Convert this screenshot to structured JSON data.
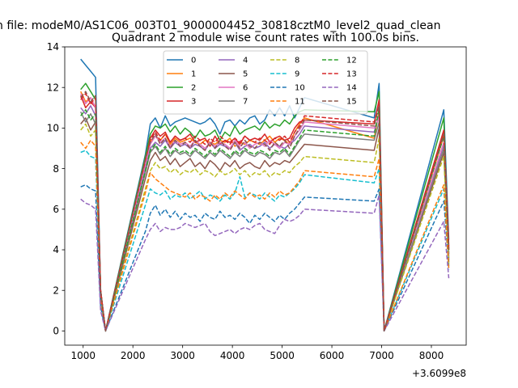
{
  "figure": {
    "suptitle": "n file: modeM0/AS1C06_003T01_9000004452_30818cztM0_level2_quad_clean",
    "title": "Quadrant 2 module wise count rates with 100.0s bins.",
    "x_offset_label": "+3.6099e8"
  },
  "chart_data": {
    "type": "line",
    "title": "Quadrant 2 module wise count rates with 100.0s bins.",
    "xlabel": "",
    "ylabel": "",
    "x_offset": 360990000,
    "xlim": [
      630,
      8700
    ],
    "ylim": [
      -0.7,
      14.0
    ],
    "xticks": [
      1000,
      2000,
      3000,
      4000,
      5000,
      6000,
      7000,
      8000
    ],
    "xtick_labels": [
      "1000",
      "2000",
      "3000",
      "4000",
      "5000",
      "6000",
      "7000",
      "8000"
    ],
    "yticks": [
      0,
      2,
      4,
      6,
      8,
      10,
      12,
      14
    ],
    "ytick_labels": [
      "0",
      "2",
      "4",
      "6",
      "8",
      "10",
      "12",
      "14"
    ],
    "grid": false,
    "legend": {
      "placement": "top-center",
      "columns": 4
    },
    "segments": [
      {
        "start": 950,
        "count": 6
      },
      {
        "start": 2250,
        "count": 33
      },
      {
        "start": 6850,
        "count": 3
      },
      {
        "start": 8250,
        "count": 2
      }
    ],
    "series": [
      {
        "name": "0",
        "color": "#1f77b4",
        "dash": "solid",
        "values": [
          13.4,
          13.1,
          12.8,
          12.5,
          2.0,
          0,
          8.7,
          10.2,
          10.5,
          10.0,
          10.6,
          10.1,
          10.3,
          10.4,
          10.5,
          10.4,
          10.3,
          10.2,
          10.3,
          10.5,
          10.2,
          9.7,
          10.3,
          10.4,
          10.1,
          10.4,
          10.2,
          10.5,
          10.6,
          10.2,
          10.4,
          10.9,
          10.6,
          11.0,
          10.6,
          11.1,
          10.5,
          11.0,
          11.5,
          10.5,
          12.2,
          0,
          10.9,
          4.5
        ]
      },
      {
        "name": "1",
        "color": "#ff7f0e",
        "dash": "solid",
        "values": [
          11.8,
          11.3,
          11.5,
          11.0,
          2.0,
          0,
          8.0,
          9.3,
          9.6,
          9.4,
          9.7,
          9.2,
          9.5,
          9.3,
          9.4,
          9.5,
          9.3,
          9.2,
          9.4,
          9.3,
          9.2,
          9.4,
          9.3,
          9.5,
          9.1,
          9.3,
          9.2,
          9.4,
          9.3,
          9.2,
          9.4,
          9.6,
          9.3,
          9.5,
          9.4,
          9.2,
          9.8,
          10.2,
          10.5,
          9.5,
          10.8,
          0,
          9.6,
          4.0
        ]
      },
      {
        "name": "2",
        "color": "#2ca02c",
        "dash": "solid",
        "values": [
          11.9,
          12.2,
          11.8,
          11.4,
          2.0,
          0,
          8.6,
          9.7,
          10.1,
          10.0,
          10.2,
          9.8,
          10.1,
          9.7,
          10.0,
          9.8,
          9.5,
          9.9,
          9.6,
          9.7,
          9.9,
          9.4,
          9.8,
          9.6,
          10.1,
          9.7,
          9.9,
          10.0,
          10.1,
          9.9,
          10.3,
          10.0,
          10.2,
          10.1,
          10.4,
          10.2,
          10.6,
          10.8,
          10.9,
          10.8,
          11.8,
          0,
          10.5,
          3.8
        ]
      },
      {
        "name": "3",
        "color": "#d62728",
        "dash": "solid",
        "values": [
          11.6,
          11.0,
          11.3,
          11.0,
          2.0,
          0,
          8.3,
          9.5,
          9.9,
          9.6,
          9.8,
          9.3,
          9.6,
          9.4,
          9.5,
          9.7,
          9.3,
          9.4,
          9.5,
          9.1,
          9.6,
          9.2,
          9.4,
          9.3,
          9.5,
          9.2,
          9.6,
          9.4,
          9.5,
          9.4,
          9.7,
          9.3,
          9.5,
          9.6,
          9.4,
          9.5,
          10.0,
          10.3,
          10.4,
          10.2,
          11.4,
          0,
          9.9,
          4.2
        ]
      },
      {
        "name": "4",
        "color": "#9467bd",
        "dash": "solid",
        "values": [
          11.0,
          10.7,
          11.1,
          10.6,
          1.8,
          0,
          8.0,
          9.0,
          9.3,
          9.1,
          9.4,
          9.0,
          9.3,
          9.1,
          9.2,
          9.0,
          9.2,
          9.1,
          8.9,
          9.3,
          9.0,
          9.2,
          9.1,
          9.0,
          9.3,
          8.9,
          9.1,
          9.2,
          9.0,
          9.1,
          9.3,
          9.0,
          9.2,
          9.1,
          9.0,
          9.2,
          9.4,
          9.7,
          10.1,
          9.8,
          10.6,
          0,
          9.2,
          3.6
        ]
      },
      {
        "name": "5",
        "color": "#8c564b",
        "dash": "solid",
        "values": [
          10.2,
          10.5,
          9.9,
          10.3,
          1.8,
          0,
          7.5,
          8.4,
          8.8,
          8.4,
          8.6,
          8.2,
          8.5,
          8.1,
          8.3,
          8.5,
          8.1,
          8.3,
          8.0,
          8.4,
          8.2,
          7.9,
          8.3,
          8.1,
          8.4,
          8.0,
          8.2,
          8.3,
          8.1,
          8.0,
          8.4,
          8.1,
          8.3,
          8.2,
          8.4,
          8.3,
          8.6,
          8.9,
          9.2,
          8.9,
          10.0,
          0,
          8.8,
          3.5
        ]
      },
      {
        "name": "6",
        "color": "#e377c2",
        "dash": "solid",
        "values": [
          11.7,
          11.2,
          11.5,
          11.0,
          1.9,
          0,
          8.2,
          9.2,
          9.6,
          9.3,
          9.5,
          9.1,
          9.4,
          9.2,
          9.3,
          9.1,
          9.4,
          9.2,
          9.0,
          9.3,
          9.1,
          9.3,
          9.2,
          9.0,
          9.4,
          9.1,
          9.3,
          9.0,
          9.2,
          9.3,
          9.1,
          9.4,
          9.2,
          9.0,
          9.3,
          9.2,
          9.6,
          9.9,
          10.3,
          10.0,
          10.5,
          0,
          9.3,
          3.7
        ]
      },
      {
        "name": "7",
        "color": "#7f7f7f",
        "dash": "solid",
        "values": [
          10.8,
          10.3,
          10.7,
          10.2,
          1.8,
          0,
          7.8,
          8.8,
          9.1,
          8.7,
          9.0,
          8.6,
          8.9,
          8.7,
          8.8,
          8.6,
          8.9,
          8.7,
          8.5,
          8.8,
          8.6,
          8.9,
          8.7,
          8.5,
          8.8,
          8.6,
          8.9,
          8.7,
          8.6,
          8.8,
          8.7,
          8.5,
          8.8,
          8.7,
          8.9,
          8.6,
          9.0,
          9.4,
          9.7,
          9.4,
          10.3,
          0,
          9.0,
          3.4
        ]
      },
      {
        "name": "8",
        "color": "#bcbd22",
        "dash": "dashed",
        "values": [
          9.9,
          10.2,
          9.6,
          9.9,
          1.7,
          0,
          7.0,
          7.9,
          8.3,
          8.0,
          8.1,
          7.8,
          8.0,
          7.7,
          7.9,
          7.8,
          8.0,
          7.7,
          7.9,
          7.8,
          7.6,
          7.9,
          7.7,
          7.8,
          8.0,
          7.7,
          7.9,
          7.6,
          7.8,
          7.7,
          7.9,
          7.6,
          7.8,
          7.7,
          7.9,
          7.8,
          8.1,
          8.3,
          8.6,
          8.3,
          9.5,
          0,
          8.6,
          3.3
        ]
      },
      {
        "name": "9",
        "color": "#17becf",
        "dash": "dashed",
        "values": [
          8.8,
          8.9,
          8.6,
          8.5,
          1.5,
          0,
          6.2,
          7.0,
          6.8,
          6.7,
          6.9,
          6.5,
          6.7,
          6.6,
          6.8,
          6.5,
          6.7,
          6.9,
          6.5,
          6.7,
          6.6,
          6.4,
          6.7,
          6.5,
          6.8,
          7.6,
          6.6,
          6.8,
          6.7,
          6.5,
          6.8,
          6.6,
          6.4,
          6.7,
          6.6,
          6.8,
          7.0,
          7.3,
          7.7,
          7.3,
          8.0,
          0,
          7.0,
          3.0
        ]
      },
      {
        "name": "10",
        "color": "#1f77b4",
        "dash": "dashed",
        "values": [
          7.1,
          7.2,
          7.0,
          6.9,
          1.2,
          0,
          4.9,
          5.8,
          6.2,
          5.7,
          6.0,
          5.6,
          5.9,
          5.5,
          5.8,
          5.6,
          5.7,
          5.4,
          5.8,
          5.6,
          5.5,
          5.9,
          5.6,
          5.7,
          5.5,
          5.8,
          5.6,
          5.3,
          5.7,
          5.5,
          5.8,
          5.6,
          5.4,
          5.7,
          5.5,
          5.8,
          6.0,
          6.3,
          6.6,
          6.4,
          7.0,
          0,
          6.4,
          3.2
        ]
      },
      {
        "name": "11",
        "color": "#ff7f0e",
        "dash": "dashed",
        "values": [
          9.3,
          9.0,
          9.4,
          9.1,
          1.6,
          0,
          6.8,
          7.8,
          7.5,
          7.3,
          7.1,
          6.9,
          6.8,
          6.7,
          6.6,
          6.8,
          6.5,
          6.7,
          6.6,
          6.4,
          6.7,
          6.5,
          6.8,
          6.6,
          6.9,
          6.7,
          6.5,
          6.8,
          6.6,
          6.7,
          6.5,
          6.8,
          6.6,
          6.9,
          6.7,
          6.8,
          7.1,
          7.4,
          7.9,
          7.6,
          8.5,
          0,
          7.2,
          3.1
        ]
      },
      {
        "name": "12",
        "color": "#2ca02c",
        "dash": "dashed",
        "values": [
          10.6,
          10.9,
          10.4,
          10.7,
          1.9,
          0,
          7.9,
          8.9,
          9.2,
          8.8,
          9.1,
          8.7,
          9.0,
          8.8,
          8.9,
          8.7,
          9.0,
          8.8,
          8.6,
          8.9,
          8.7,
          9.0,
          8.8,
          8.6,
          8.9,
          8.7,
          9.0,
          8.8,
          8.7,
          8.9,
          8.8,
          8.6,
          8.9,
          8.8,
          9.0,
          8.7,
          9.1,
          9.5,
          9.9,
          9.6,
          11.0,
          0,
          9.6,
          3.9
        ]
      },
      {
        "name": "13",
        "color": "#d62728",
        "dash": "dashed",
        "values": [
          11.4,
          11.7,
          11.2,
          11.5,
          2.0,
          0,
          8.4,
          9.4,
          9.8,
          9.4,
          9.7,
          9.3,
          9.6,
          9.4,
          9.5,
          9.3,
          9.6,
          9.4,
          9.2,
          9.5,
          9.3,
          9.6,
          9.4,
          9.2,
          9.5,
          9.3,
          9.6,
          9.4,
          9.3,
          9.5,
          9.4,
          9.2,
          9.5,
          9.4,
          9.6,
          9.3,
          9.8,
          10.1,
          10.6,
          10.3,
          11.2,
          0,
          9.8,
          4.1
        ]
      },
      {
        "name": "14",
        "color": "#9467bd",
        "dash": "dashed",
        "values": [
          6.5,
          6.3,
          6.2,
          6.0,
          1.0,
          0,
          4.5,
          5.0,
          5.3,
          4.9,
          5.1,
          5.0,
          5.0,
          5.1,
          5.3,
          5.2,
          5.1,
          5.2,
          5.3,
          4.9,
          4.7,
          4.8,
          4.9,
          5.0,
          4.8,
          5.0,
          5.1,
          5.0,
          5.2,
          5.3,
          5.0,
          4.9,
          4.8,
          5.2,
          5.5,
          5.4,
          5.5,
          5.7,
          6.0,
          5.8,
          6.7,
          0,
          5.4,
          2.6
        ]
      },
      {
        "name": "15",
        "color": "#8c564b",
        "dash": "dashed",
        "values": [
          11.5,
          11.8,
          11.3,
          11.6,
          2.0,
          0,
          8.5,
          9.3,
          9.7,
          9.2,
          9.5,
          9.0,
          9.4,
          9.1,
          9.3,
          9.0,
          9.4,
          9.1,
          8.9,
          9.3,
          9.0,
          9.4,
          9.1,
          8.9,
          9.3,
          9.0,
          9.4,
          9.1,
          9.0,
          9.3,
          9.2,
          8.9,
          9.3,
          9.1,
          9.4,
          9.0,
          9.6,
          10.0,
          10.4,
          10.1,
          11.1,
          0,
          9.7,
          4.0
        ]
      }
    ]
  }
}
